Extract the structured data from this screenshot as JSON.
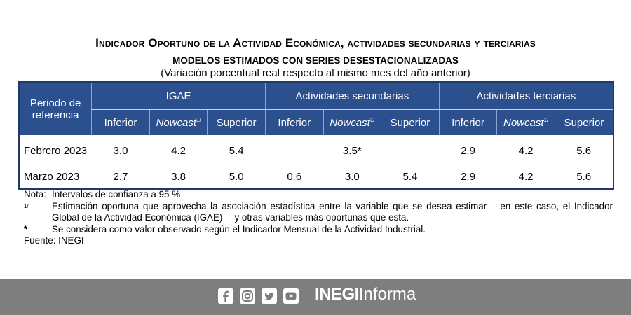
{
  "title": "Indicador Oportuno de la Actividad Económica, actividades secundarias y terciarias",
  "subtitle": "MODELOS ESTIMADOS CON SERIES DESESTACIONALIZADAS",
  "subtitle2": "(Variación porcentual real respecto al mismo mes del año anterior)",
  "table": {
    "period_header": "Periodo de referencia",
    "groups": [
      "IGAE",
      "Actividades secundarias",
      "Actividades terciarias"
    ],
    "subheaders": {
      "inferior": "Inferior",
      "nowcast": "Nowcast",
      "nowcast_sup": "1/",
      "superior": "Superior"
    },
    "rows": [
      {
        "period": "Febrero 2023",
        "values": [
          "3.0",
          "4.2",
          "5.4",
          "",
          "3.5*",
          "",
          "2.9",
          "4.2",
          "5.6"
        ]
      },
      {
        "period": "Marzo 2023",
        "values": [
          "2.7",
          "3.8",
          "5.0",
          "0.6",
          "3.0",
          "5.4",
          "2.9",
          "4.2",
          "5.6"
        ]
      }
    ]
  },
  "notes": {
    "nota_label": "Nota:",
    "nota_text": "Intervalos de confianza a 95 %",
    "n1_marker": "1/",
    "n1_text": "Estimación oportuna que aprovecha la asociación estadística entre la variable que se desea estimar —en este caso, el Indicador Global de la Actividad Económica (IGAE)— y otras variables más oportunas que esta.",
    "star_marker": "*",
    "star_text": "Se considera como valor observado según el Indicador Mensual de la Actividad Industrial.",
    "source": "Fuente: INEGI"
  },
  "footer": {
    "icons": [
      "facebook-icon",
      "instagram-icon",
      "twitter-icon",
      "youtube-icon"
    ],
    "brand_bold": "INEGI",
    "brand_light": "Informa"
  }
}
